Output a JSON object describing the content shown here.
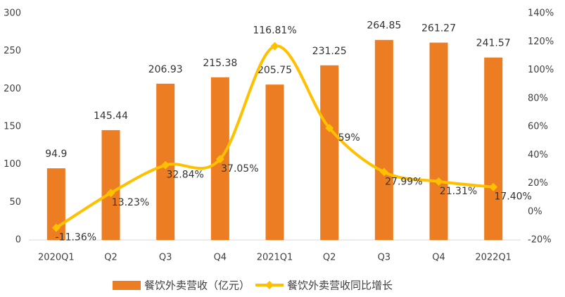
{
  "chart_data": {
    "type": "bar",
    "categories": [
      "2020Q1",
      "Q2",
      "Q3",
      "Q4",
      "2021Q1",
      "Q2",
      "Q3",
      "Q4",
      "2022Q1"
    ],
    "series": [
      {
        "name": "餐饮外卖营收（亿元）",
        "type": "bar",
        "color": "#ed7d22",
        "values": [
          94.9,
          145.44,
          206.93,
          215.38,
          205.75,
          231.25,
          264.85,
          261.27,
          241.57
        ]
      },
      {
        "name": "餐饮外卖营收同比增长",
        "type": "line",
        "axis": "y2",
        "color": "#ffc000",
        "values": [
          -11.36,
          13.23,
          32.84,
          37.05,
          116.81,
          59,
          27.99,
          21.31,
          17.4
        ],
        "value_labels": [
          "-11.36%",
          "13.23%",
          "32.84%",
          "37.05%",
          "116.81%",
          "59%",
          "27.99%",
          "21.31%",
          "17.40%"
        ]
      }
    ],
    "ylim": [
      0,
      300
    ],
    "yticks": [
      0,
      50,
      100,
      150,
      200,
      250,
      300
    ],
    "y2lim": [
      -20,
      140
    ],
    "y2ticks": [
      {
        "value": -20,
        "label": "-20%"
      },
      {
        "value": 0,
        "label": "0%"
      },
      {
        "value": 20,
        "label": "20%"
      },
      {
        "value": 40,
        "label": "40%"
      },
      {
        "value": 60,
        "label": "60%"
      },
      {
        "value": 80,
        "label": "80%"
      },
      {
        "value": 100,
        "label": "100%"
      },
      {
        "value": 120,
        "label": "120%"
      },
      {
        "value": 140,
        "label": "140%"
      }
    ],
    "legend": "bottom"
  }
}
